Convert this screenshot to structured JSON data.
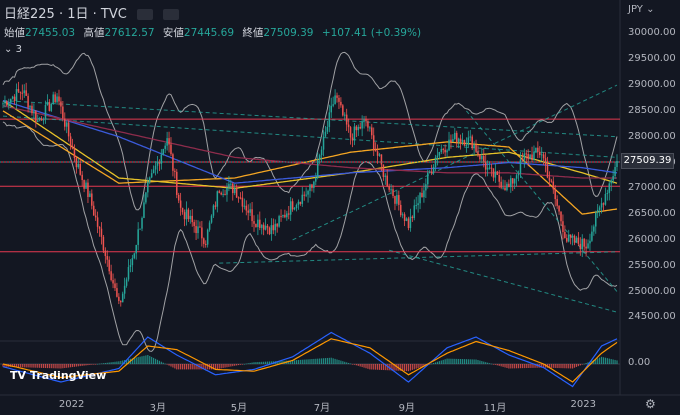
{
  "header": {
    "symbol": "日経225 · 1日 · TVC",
    "currency": "JPY"
  },
  "ohlc": {
    "open_label": "始値",
    "open": "27455.03",
    "high_label": "高値",
    "high": "27612.57",
    "low_label": "安値",
    "low": "27445.69",
    "close_label": "終値",
    "close": "27509.39",
    "change": "+107.41 (+0.39%)"
  },
  "indicators_toggle": "3",
  "logo": "TradingView",
  "colors": {
    "background": "#131722",
    "up": "#26a69a",
    "down": "#ef5350",
    "horizontal_lines": "#e53950",
    "ma_orange": "#f5a623",
    "ma_yellow": "#e6c229",
    "ma_blue": "#3b5bdb",
    "ma_maroon": "#8e2c4c",
    "bollinger": "#d0d0d0",
    "trendline": "#26a69a"
  },
  "chart_data": {
    "type": "candlestick",
    "title": "日経225",
    "y_axis": {
      "ticks": [
        "30000.00",
        "29500.00",
        "29000.00",
        "28500.00",
        "28000.00",
        "27500.00",
        "27000.00",
        "26500.00",
        "26000.00",
        "25500.00",
        "25000.00",
        "24500.00"
      ],
      "range": [
        24100,
        30300
      ]
    },
    "x_axis": {
      "ticks": [
        "2022",
        "3月",
        "5月",
        "7月",
        "9月",
        "11月",
        "2023"
      ]
    },
    "last_price": "27509.39",
    "horizontal_levels": [
      28340,
      27510,
      27040,
      25770
    ],
    "path_keypoints": [
      [
        0,
        28650
      ],
      [
        10,
        28900
      ],
      [
        18,
        28300
      ],
      [
        28,
        28800
      ],
      [
        38,
        27500
      ],
      [
        45,
        26800
      ],
      [
        55,
        25500
      ],
      [
        60,
        24700
      ],
      [
        68,
        25800
      ],
      [
        75,
        27000
      ],
      [
        85,
        28000
      ],
      [
        92,
        26600
      ],
      [
        105,
        26000
      ],
      [
        112,
        27000
      ],
      [
        120,
        27000
      ],
      [
        130,
        26400
      ],
      [
        140,
        26200
      ],
      [
        150,
        26700
      ],
      [
        160,
        27000
      ],
      [
        172,
        28800
      ],
      [
        180,
        28000
      ],
      [
        188,
        28300
      ],
      [
        198,
        27200
      ],
      [
        210,
        26300
      ],
      [
        218,
        27000
      ],
      [
        225,
        27700
      ],
      [
        235,
        28000
      ],
      [
        243,
        27900
      ],
      [
        252,
        27300
      ],
      [
        262,
        27000
      ],
      [
        270,
        27600
      ],
      [
        279,
        27700
      ],
      [
        292,
        26000
      ],
      [
        302,
        25900
      ],
      [
        314,
        27100
      ],
      [
        318,
        27510
      ]
    ],
    "ma_keypoints": {
      "orange": [
        [
          0,
          28500
        ],
        [
          60,
          27100
        ],
        [
          120,
          27200
        ],
        [
          180,
          27700
        ],
        [
          230,
          27900
        ],
        [
          262,
          27800
        ],
        [
          300,
          26500
        ],
        [
          318,
          26600
        ]
      ],
      "yellow": [
        [
          0,
          28700
        ],
        [
          60,
          27200
        ],
        [
          120,
          27000
        ],
        [
          180,
          27300
        ],
        [
          230,
          27600
        ],
        [
          262,
          27700
        ],
        [
          300,
          27300
        ],
        [
          318,
          27100
        ]
      ],
      "blue": [
        [
          0,
          28700
        ],
        [
          60,
          28000
        ],
        [
          120,
          27100
        ],
        [
          180,
          27300
        ],
        [
          230,
          27400
        ],
        [
          262,
          27500
        ],
        [
          300,
          27400
        ],
        [
          318,
          27300
        ]
      ],
      "maroon": [
        [
          0,
          28600
        ],
        [
          60,
          28100
        ],
        [
          120,
          27600
        ],
        [
          180,
          27400
        ],
        [
          230,
          27300
        ],
        [
          262,
          27300
        ],
        [
          300,
          27200
        ],
        [
          318,
          27200
        ]
      ]
    },
    "macd": {
      "zero_label": "0.00",
      "macd_keypoints": [
        [
          0,
          -30
        ],
        [
          30,
          -200
        ],
        [
          60,
          -50
        ],
        [
          75,
          300
        ],
        [
          90,
          100
        ],
        [
          110,
          -120
        ],
        [
          130,
          -60
        ],
        [
          150,
          80
        ],
        [
          170,
          350
        ],
        [
          190,
          120
        ],
        [
          210,
          -200
        ],
        [
          230,
          180
        ],
        [
          245,
          300
        ],
        [
          262,
          100
        ],
        [
          280,
          -40
        ],
        [
          295,
          -250
        ],
        [
          310,
          200
        ],
        [
          318,
          280
        ]
      ],
      "signal_keypoints": [
        [
          0,
          0
        ],
        [
          30,
          -150
        ],
        [
          60,
          -80
        ],
        [
          75,
          200
        ],
        [
          90,
          160
        ],
        [
          110,
          -60
        ],
        [
          130,
          -80
        ],
        [
          150,
          40
        ],
        [
          170,
          280
        ],
        [
          190,
          180
        ],
        [
          210,
          -120
        ],
        [
          230,
          120
        ],
        [
          245,
          250
        ],
        [
          262,
          150
        ],
        [
          280,
          0
        ],
        [
          295,
          -200
        ],
        [
          310,
          120
        ],
        [
          318,
          240
        ]
      ]
    }
  }
}
